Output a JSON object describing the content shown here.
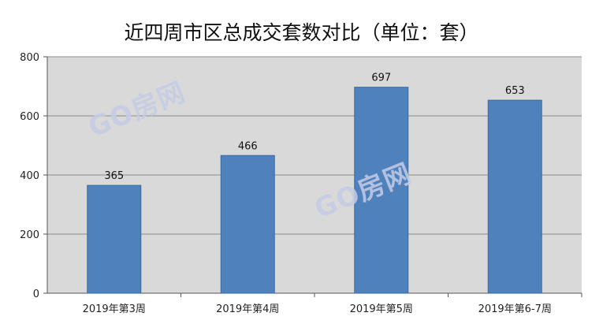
{
  "chart_data": {
    "type": "bar",
    "title": "近四周市区总成交套数对比（单位：套）",
    "categories": [
      "2019年第3周",
      "2019年第4周",
      "2019年第5周",
      "2019年第6-7周"
    ],
    "values": [
      365,
      466,
      697,
      653
    ],
    "data_labels": [
      "365",
      "466",
      "697",
      "653"
    ],
    "ylim": [
      0,
      800
    ],
    "yticks": [
      0,
      200,
      400,
      600,
      800
    ],
    "xlabel": "",
    "ylabel": "",
    "grid": true,
    "legend": "none",
    "colors": {
      "bar": "#4f81bd",
      "bar_edge": "#3a6a9f",
      "plot_bg": "#d9d9d9",
      "grid": "#8c8c8c"
    }
  },
  "watermark": {
    "text": "GO房网"
  }
}
